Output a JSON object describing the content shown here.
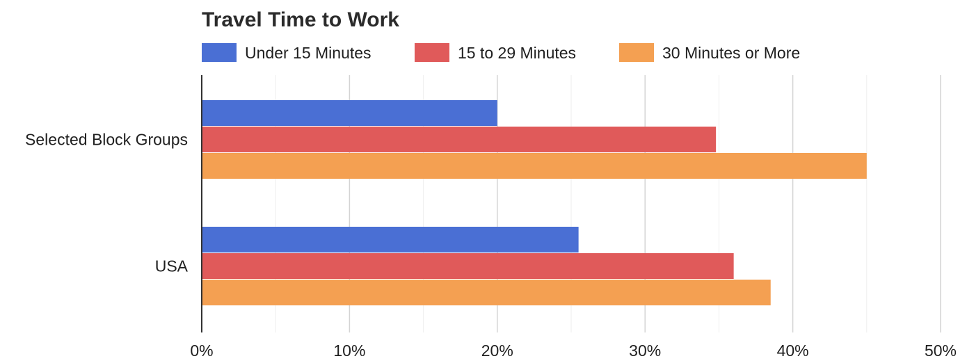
{
  "chart_data": {
    "type": "bar",
    "orientation": "horizontal",
    "title": "Travel Time to Work",
    "categories": [
      "Selected Block Groups",
      "USA"
    ],
    "series": [
      {
        "name": "Under 15 Minutes",
        "color": "#4a6fd4",
        "values": [
          20.0,
          25.5
        ]
      },
      {
        "name": "15 to 29 Minutes",
        "color": "#e05a5a",
        "values": [
          34.8,
          36.0
        ]
      },
      {
        "name": "30 Minutes or More",
        "color": "#f4a052",
        "values": [
          45.0,
          38.5
        ]
      }
    ],
    "xlim": [
      0,
      50
    ],
    "xticks": [
      0,
      10,
      20,
      30,
      40,
      50
    ],
    "xtick_labels": [
      "0%",
      "10%",
      "20%",
      "30%",
      "40%",
      "50%"
    ],
    "grid": true,
    "legend_position": "top"
  }
}
